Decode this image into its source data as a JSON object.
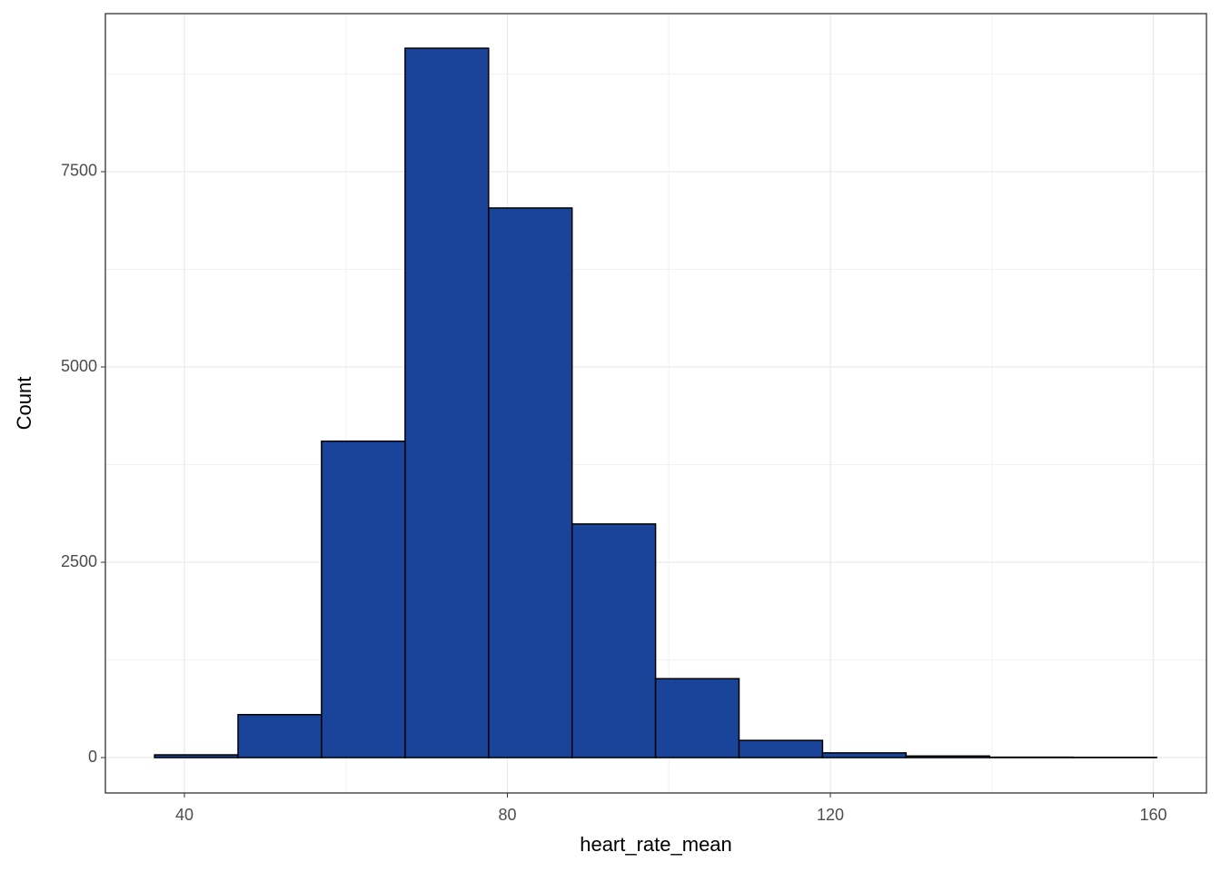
{
  "chart_data": {
    "type": "histogram",
    "x_label": "heart_rate_mean",
    "y_label": "Count",
    "bins": [
      36.3,
      46.64,
      56.98,
      67.33,
      77.67,
      88.01,
      98.35,
      108.69,
      119.03,
      129.38,
      139.72,
      150.06,
      160.4
    ],
    "values": [
      35,
      550,
      4050,
      9080,
      7035,
      2990,
      1010,
      220,
      60,
      20,
      5,
      3
    ],
    "color": "#19449a",
    "edge_color": "#000000",
    "xlim": [
      30.21,
      166.58
    ],
    "xticks": [
      40,
      80,
      120,
      160
    ],
    "ylim": [
      -453,
      9523
    ],
    "yticks": [
      0,
      2500,
      5000,
      7500
    ],
    "grid": true,
    "minor_grid": true
  }
}
